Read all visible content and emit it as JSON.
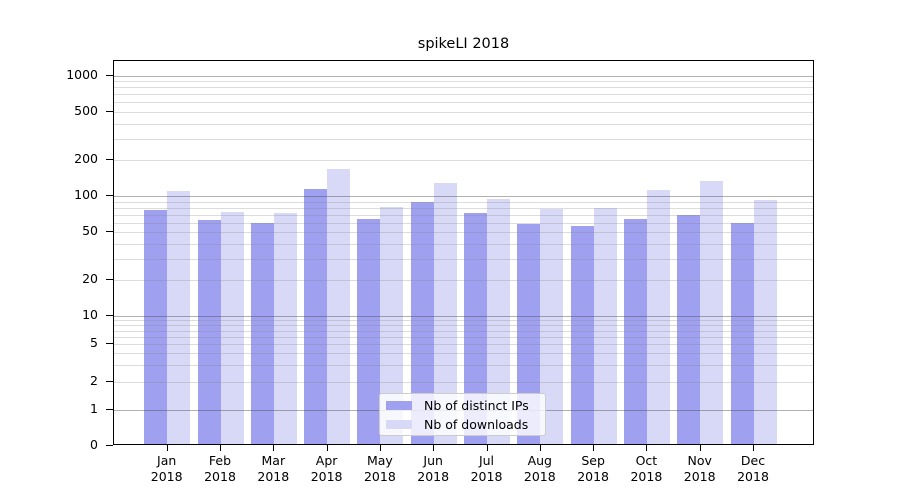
{
  "chart_data": {
    "type": "bar",
    "title": "spikeLI 2018",
    "x_tick_months": [
      "Jan",
      "Feb",
      "Mar",
      "Apr",
      "May",
      "Jun",
      "Jul",
      "Aug",
      "Sep",
      "Oct",
      "Nov",
      "Dec"
    ],
    "x_tick_year": "2018",
    "series": [
      {
        "name": "Nb of distinct IPs",
        "color": "#a0a0f0",
        "values": [
          76,
          63,
          60,
          114,
          64,
          90,
          72,
          58,
          56,
          65,
          69,
          60
        ]
      },
      {
        "name": "Nb of downloads",
        "color": "#d8d8f7",
        "values": [
          110,
          73,
          72,
          168,
          81,
          128,
          95,
          78,
          79,
          112,
          134,
          92
        ]
      }
    ],
    "yscale": "symlog",
    "ylim": [
      0,
      1300
    ],
    "yticks": [
      0,
      1,
      2,
      5,
      10,
      20,
      50,
      100,
      200,
      500,
      1000
    ],
    "grid": "horizontal major+minor",
    "legend_position": "lower center"
  },
  "colors": {
    "bar_primary": "#a0a0f0",
    "bar_secondary": "#d8d8f7",
    "grid_major": "#b0b0b0",
    "grid_minor": "#e6e6e6",
    "axis": "#000000",
    "legend_border": "#cccccc"
  }
}
